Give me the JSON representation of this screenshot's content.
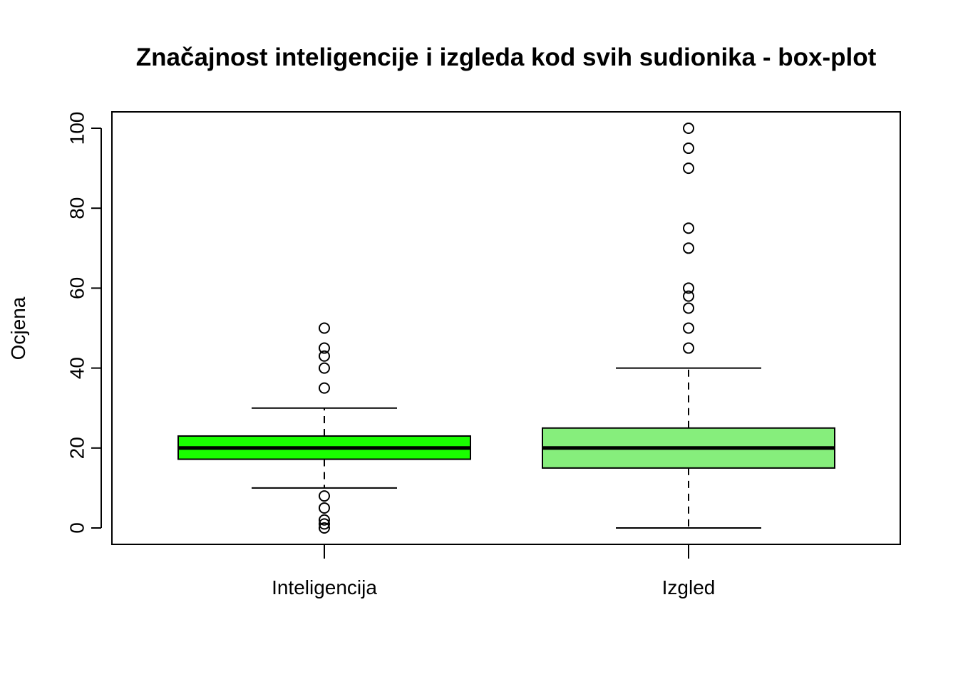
{
  "chart_data": {
    "type": "boxplot",
    "title": "Značajnost inteligencije i izgleda kod svih sudionika - box-plot",
    "xlabel": "",
    "ylabel": "Ocjena",
    "ylim": [
      -4,
      104
    ],
    "yticks": [
      0,
      20,
      40,
      60,
      80,
      100
    ],
    "grid": false,
    "categories": [
      "Inteligencija",
      "Izgled"
    ],
    "series": [
      {
        "category": "Inteligencija",
        "fill": "#1aff00",
        "whisker_low": 10,
        "q1": 17.2,
        "median": 20,
        "q3": 23,
        "whisker_high": 30,
        "outliers": [
          50,
          45,
          43,
          40,
          35,
          8,
          5,
          2,
          1,
          0
        ]
      },
      {
        "category": "Izgled",
        "fill": "#86ee7c",
        "whisker_low": 0,
        "q1": 15,
        "median": 20,
        "q3": 25,
        "whisker_high": 40,
        "outliers": [
          100,
          95,
          90,
          75,
          70,
          60,
          58,
          55,
          50,
          45
        ]
      }
    ]
  }
}
